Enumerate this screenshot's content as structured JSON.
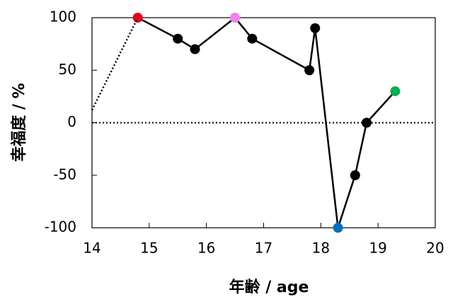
{
  "chart_data": {
    "type": "line",
    "x_label": "年齢 / age",
    "y_label": "幸福度 / %",
    "xlim": [
      14,
      20
    ],
    "xticks": [
      14,
      15,
      16,
      17,
      18,
      19,
      20
    ],
    "ylim": [
      -100,
      100
    ],
    "yticks": [
      -100,
      -50,
      0,
      50,
      100
    ],
    "reference_line": 0,
    "series": [
      {
        "color": "#000000",
        "line_style": "solid",
        "markers": true,
        "x": [
          14.8,
          15.5,
          15.8,
          16.5,
          16.8,
          17.8,
          17.9,
          18.3,
          18.6,
          18.8,
          19.3
        ],
        "values": [
          100,
          80,
          70,
          100,
          80,
          50,
          90,
          -100,
          -50,
          0,
          30
        ],
        "point_colors": [
          "#e8001c",
          "#000000",
          "#000000",
          "#ee82ee",
          "#000000",
          "#000000",
          "#000000",
          "#0070c0",
          "#000000",
          "#000000",
          "#00b050"
        ]
      },
      {
        "color": "#000000",
        "line_style": "dotted",
        "markers": false,
        "x": [
          14,
          14.8
        ],
        "values": [
          12,
          100
        ]
      }
    ]
  }
}
